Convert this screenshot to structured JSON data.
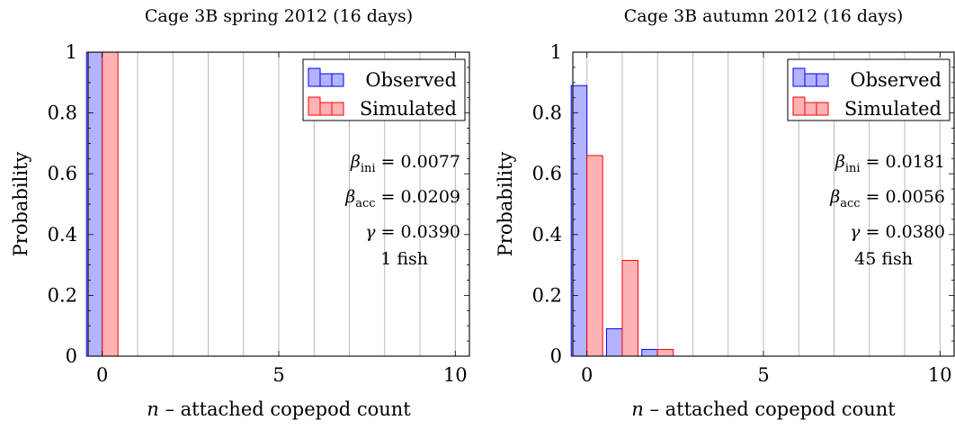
{
  "chart_data": [
    {
      "type": "bar",
      "title": "Cage 3B spring 2012 (16 days)",
      "xlabel_var": "n",
      "xlabel_rest": " – attached copepod count",
      "ylabel": "Probability",
      "xlim": [
        -0.4,
        10.4
      ],
      "ylim": [
        0,
        1
      ],
      "xticks": [
        0,
        5,
        10
      ],
      "yticks": [
        0,
        0.2,
        0.4,
        0.6,
        0.8,
        1
      ],
      "ytick_labels": [
        "0",
        "0.2",
        "0.4",
        "0.6",
        "0.8",
        "1"
      ],
      "grid": "vertical",
      "legend_position": "top-right",
      "series": [
        {
          "name": "Observed",
          "color": "#0000ff",
          "fill": "#b3b3ff",
          "x": [
            0
          ],
          "values": [
            1.0
          ]
        },
        {
          "name": "Simulated",
          "color": "#ff0000",
          "fill": "#ffb3b3",
          "x": [
            0
          ],
          "values": [
            1.0
          ]
        }
      ],
      "annotations": {
        "beta_ini": "0.0077",
        "beta_acc": "0.0209",
        "gamma": "0.0390",
        "fish": "1 fish"
      }
    },
    {
      "type": "bar",
      "title": "Cage 3B autumn 2012 (16 days)",
      "xlabel_var": "n",
      "xlabel_rest": " – attached copepod count",
      "ylabel": "Probability",
      "xlim": [
        -0.4,
        10.4
      ],
      "ylim": [
        0,
        1
      ],
      "xticks": [
        0,
        5,
        10
      ],
      "yticks": [
        0,
        0.2,
        0.4,
        0.6,
        0.8,
        1
      ],
      "ytick_labels": [
        "0",
        "0.2",
        "0.4",
        "0.6",
        "0.8",
        "1"
      ],
      "grid": "vertical",
      "legend_position": "top-right",
      "series": [
        {
          "name": "Observed",
          "color": "#0000ff",
          "fill": "#b3b3ff",
          "x": [
            0,
            1,
            2
          ],
          "values": [
            0.89,
            0.09,
            0.022
          ]
        },
        {
          "name": "Simulated",
          "color": "#ff0000",
          "fill": "#ffb3b3",
          "x": [
            0,
            1,
            2
          ],
          "values": [
            0.66,
            0.315,
            0.022
          ]
        }
      ],
      "annotations": {
        "beta_ini": "0.0181",
        "beta_acc": "0.0056",
        "gamma": "0.0380",
        "fish": "45 fish"
      }
    }
  ]
}
